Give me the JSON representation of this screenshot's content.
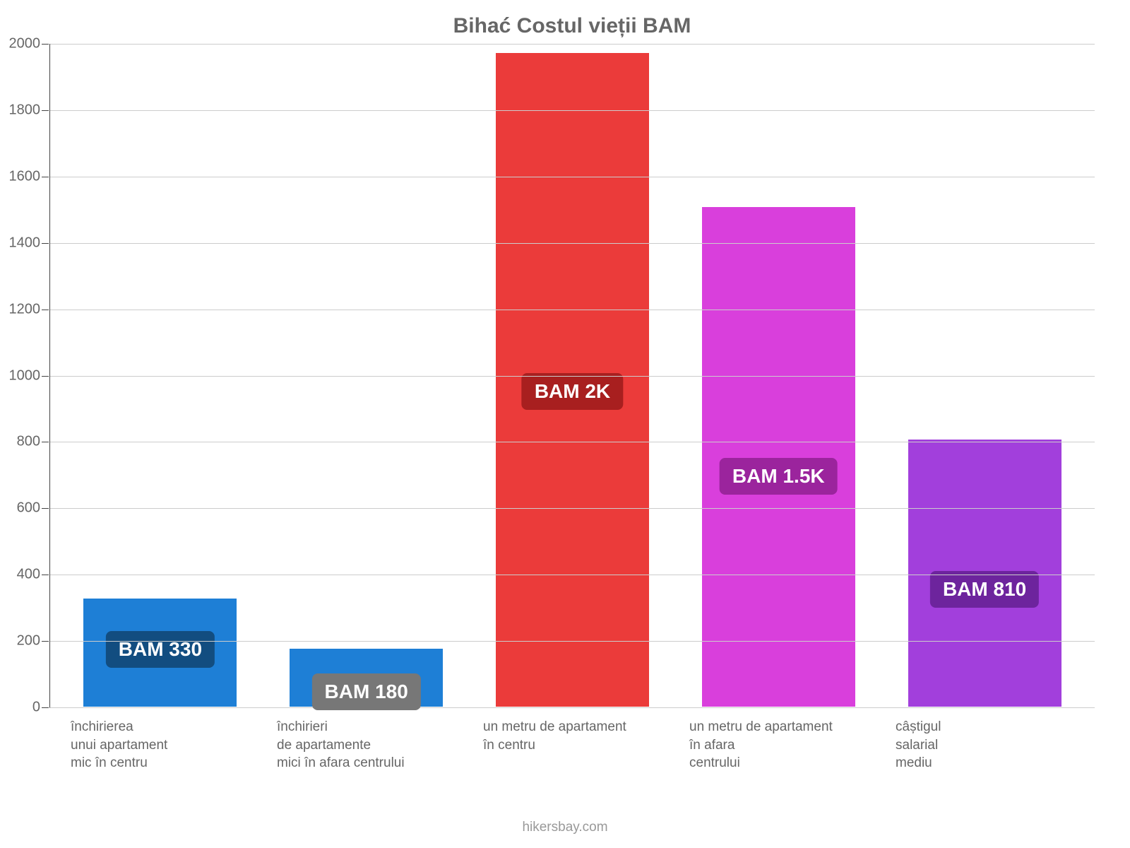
{
  "chart": {
    "type": "bar",
    "title": "Bihać Costul vieții BAM",
    "title_fontsize": 30,
    "title_color": "#666666",
    "background_color": "#ffffff",
    "ylim": [
      0,
      2000
    ],
    "ytick_step": 200,
    "y_ticks": [
      0,
      200,
      400,
      600,
      800,
      1000,
      1200,
      1400,
      1600,
      1800,
      2000
    ],
    "axis_color": "#444444",
    "grid_color": "#cccccc",
    "tick_label_color": "#666666",
    "tick_label_fontsize": 20,
    "x_label_fontsize": 19,
    "x_label_color": "#666666",
    "badge_fontsize": 28,
    "bar_width": 0.75,
    "bars": [
      {
        "label_lines": [
          "închirierea",
          "unui apartament",
          "mic în centru"
        ],
        "value": 330,
        "display_label": "BAM 330",
        "bar_color": "#1e7fd6",
        "badge_bg": "#124d80",
        "badge_text": "#ffffff",
        "badge_offset": 55
      },
      {
        "label_lines": [
          "închirieri",
          "de apartamente",
          "mici în afara centrului"
        ],
        "value": 180,
        "display_label": "BAM 180",
        "bar_color": "#1e7fd6",
        "badge_bg": "#777777",
        "badge_text": "#ffffff",
        "badge_offset": -5
      },
      {
        "label_lines": [
          "un metru de apartament",
          "în centru"
        ],
        "value": 1975,
        "display_label": "BAM 2K",
        "bar_color": "#eb3b3a",
        "badge_bg": "#a81f1f",
        "badge_text": "#ffffff",
        "badge_offset": 420
      },
      {
        "label_lines": [
          "un metru de apartament",
          "în afara",
          "centrului"
        ],
        "value": 1510,
        "display_label": "BAM 1.5K",
        "bar_color": "#d93fdc",
        "badge_bg": "#9b249d",
        "badge_text": "#ffffff",
        "badge_offset": 300
      },
      {
        "label_lines": [
          "câștigul",
          "salarial",
          "mediu"
        ],
        "value": 810,
        "display_label": "BAM 810",
        "bar_color": "#a23fdc",
        "badge_bg": "#6d249d",
        "badge_text": "#ffffff",
        "badge_offset": 140
      }
    ]
  },
  "attribution": {
    "text": "hikersbay.com",
    "color": "#999999",
    "fontsize": 19
  }
}
